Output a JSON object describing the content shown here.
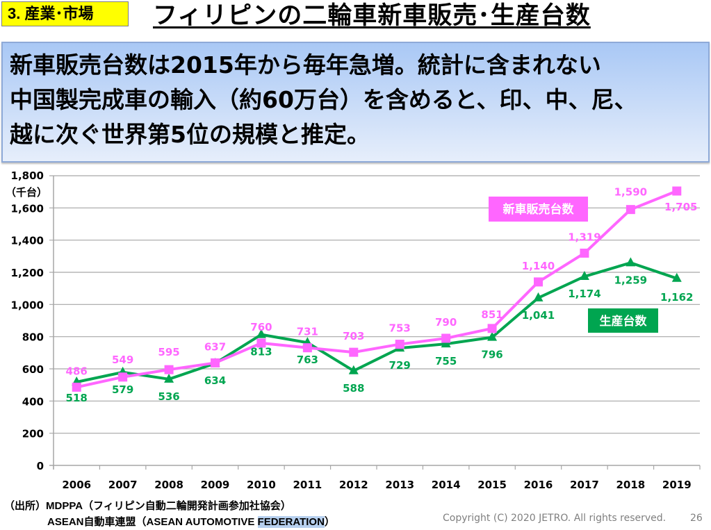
{
  "header": {
    "section_tag": "3. 産業･市場",
    "title": "フィリピンの二輪車新車販売･生産台数"
  },
  "summary": {
    "lines": [
      "新車販売台数は2015年から毎年急増。統計に含まれない",
      "中国製完成車の輸入（約60万台）を含めると、印、中、尼、",
      "越に次ぐ世界第5位の規模と推定。"
    ]
  },
  "chart_data": {
    "type": "line",
    "title": "",
    "xlabel": "",
    "ylabel": "（千台）",
    "ylim": [
      0,
      1800
    ],
    "yticks": [
      0,
      200,
      400,
      600,
      800,
      1000,
      1200,
      1400,
      1600,
      1800
    ],
    "ytick_labels": [
      "0",
      "200",
      "400",
      "600",
      "800",
      "1,000",
      "1,200",
      "1,400",
      "1,600",
      "1,800"
    ],
    "grid": true,
    "categories": [
      "2006",
      "2007",
      "2008",
      "2009",
      "2010",
      "2011",
      "2012",
      "2013",
      "2014",
      "2015",
      "2016",
      "2017",
      "2018",
      "2019"
    ],
    "series": [
      {
        "name": "新車販売台数",
        "color": "#ff66ff",
        "marker": "square",
        "values": [
          486,
          549,
          595,
          637,
          760,
          731,
          703,
          753,
          790,
          851,
          1140,
          1319,
          1590,
          1705
        ],
        "labels": [
          "486",
          "549",
          "595",
          "637",
          "760",
          "731",
          "703",
          "753",
          "790",
          "851",
          "1,140",
          "1,319",
          "1,590",
          "1,705"
        ]
      },
      {
        "name": "生産台数",
        "color": "#00a550",
        "marker": "triangle",
        "values": [
          518,
          579,
          536,
          634,
          813,
          763,
          588,
          729,
          755,
          796,
          1041,
          1174,
          1259,
          1162
        ],
        "labels": [
          "518",
          "579",
          "536",
          "634",
          "813",
          "763",
          "588",
          "729",
          "755",
          "796",
          "1,041",
          "1,174",
          "1,259",
          "1,162"
        ]
      }
    ],
    "legend": [
      {
        "label": "新車販売台数",
        "placement": "upper-right, above sales line"
      },
      {
        "label": "生産台数",
        "placement": "right, below production line"
      }
    ]
  },
  "footer": {
    "source_line1": "（出所）MDPPA（フィリピン自動二輪開発計画参加社協会）",
    "source_line2_a": "ASEAN自動車連盟（ASEAN AUTOMOTIVE ",
    "source_line2_highlight": "FEDERATION",
    "source_line2_b": "）",
    "copyright": "Copyright (C) 2020 JETRO. All rights reserved.",
    "page_number": "26"
  }
}
